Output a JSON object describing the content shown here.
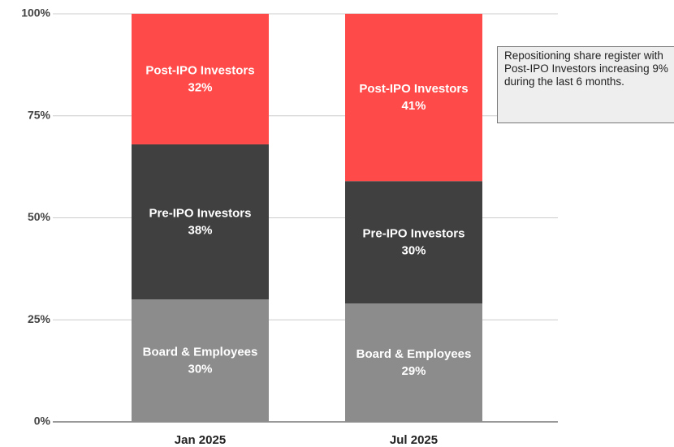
{
  "chart_data": {
    "type": "stacked-bar",
    "categories": [
      "Jan 2025",
      "Jul 2025"
    ],
    "series": [
      {
        "name": "Board & Employees",
        "color": "#8c8c8c",
        "values": [
          30,
          29
        ],
        "value_labels": [
          "30%",
          "29%"
        ]
      },
      {
        "name": "Pre-IPO Investors",
        "color": "#404040",
        "values": [
          38,
          30
        ],
        "value_labels": [
          "38%",
          "30%"
        ]
      },
      {
        "name": "Post-IPO Investors",
        "color": "#ff4a4a",
        "values": [
          32,
          41
        ],
        "value_labels": [
          "32%",
          "41%"
        ]
      }
    ],
    "ylim": [
      0,
      100
    ],
    "yticks": [
      {
        "value": 0,
        "label": "0%"
      },
      {
        "value": 25,
        "label": "25%"
      },
      {
        "value": 50,
        "label": "50%"
      },
      {
        "value": 75,
        "label": "75%"
      },
      {
        "value": 100,
        "label": "100%"
      }
    ],
    "grid": true,
    "annotation": "Repositioning share register with Post-IPO Investors increasing 9% during the last 6 months."
  }
}
